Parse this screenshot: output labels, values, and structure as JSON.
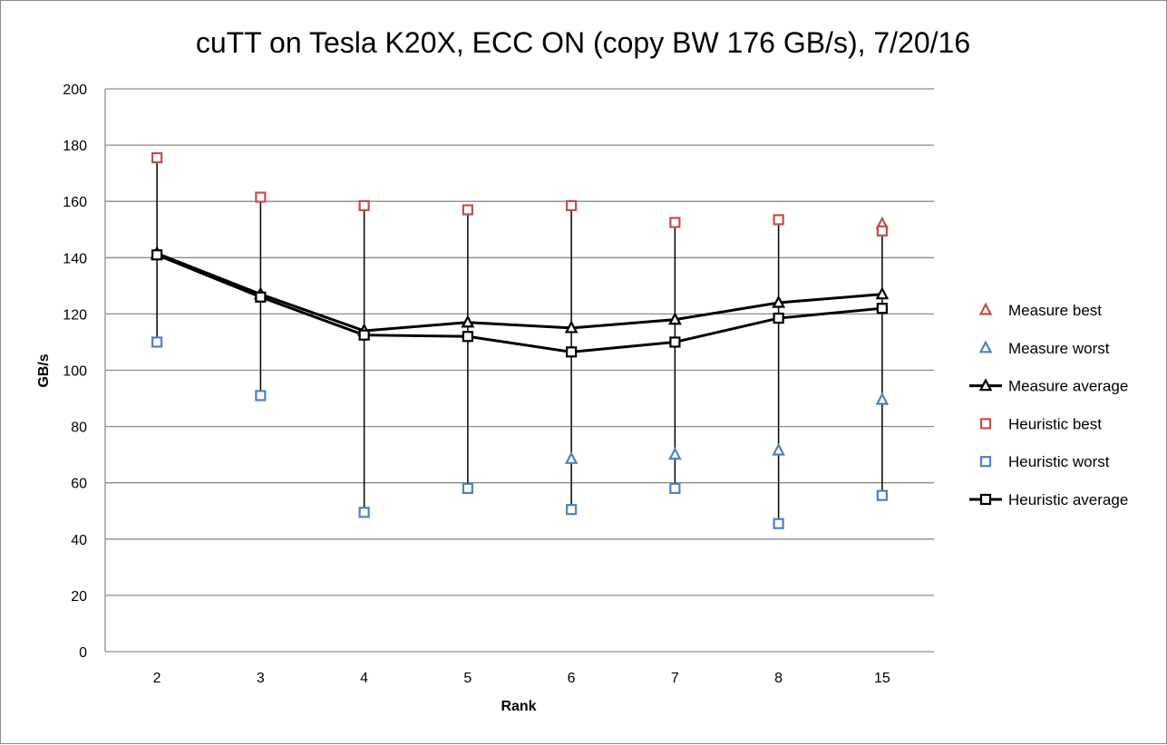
{
  "chart_data": {
    "type": "line",
    "title": "cuTT on Tesla K20X, ECC ON (copy BW 176 GB/s), 7/20/16",
    "xlabel": "Rank",
    "ylabel": "GB/s",
    "ylim": [
      0,
      200
    ],
    "y_ticks": [
      0,
      20,
      40,
      60,
      80,
      100,
      120,
      140,
      160,
      180,
      200
    ],
    "grid": "horizontal",
    "legend_position": "right",
    "categories": [
      "2",
      "3",
      "4",
      "5",
      "6",
      "7",
      "8",
      "15"
    ],
    "series": [
      {
        "name": "Measure best",
        "marker": "triangle",
        "color": "#c0504d",
        "line": false,
        "values": [
          141,
          127,
          114,
          117,
          115,
          118,
          124,
          152
        ]
      },
      {
        "name": "Measure worst",
        "marker": "triangle",
        "color": "#4f81bd",
        "line": false,
        "values": [
          141,
          127,
          114,
          117,
          68.5,
          70,
          71.5,
          89.5
        ]
      },
      {
        "name": "Measure average",
        "marker": "triangle",
        "color": "#000000",
        "line": true,
        "values": [
          141.5,
          127,
          114,
          117,
          115,
          118,
          124,
          127
        ]
      },
      {
        "name": "Heuristic best",
        "marker": "square",
        "color": "#c0504d",
        "line": false,
        "values": [
          175.5,
          161.5,
          158.5,
          157,
          158.5,
          152.5,
          153.5,
          149.5
        ]
      },
      {
        "name": "Heuristic worst",
        "marker": "square",
        "color": "#4f81bd",
        "line": false,
        "values": [
          110,
          91,
          49.5,
          58,
          50.5,
          58,
          45.5,
          55.5
        ]
      },
      {
        "name": "Heuristic average",
        "marker": "square",
        "color": "#000000",
        "line": true,
        "values": [
          141,
          126,
          112.5,
          112,
          106.5,
          110,
          118.5,
          122
        ]
      }
    ]
  }
}
